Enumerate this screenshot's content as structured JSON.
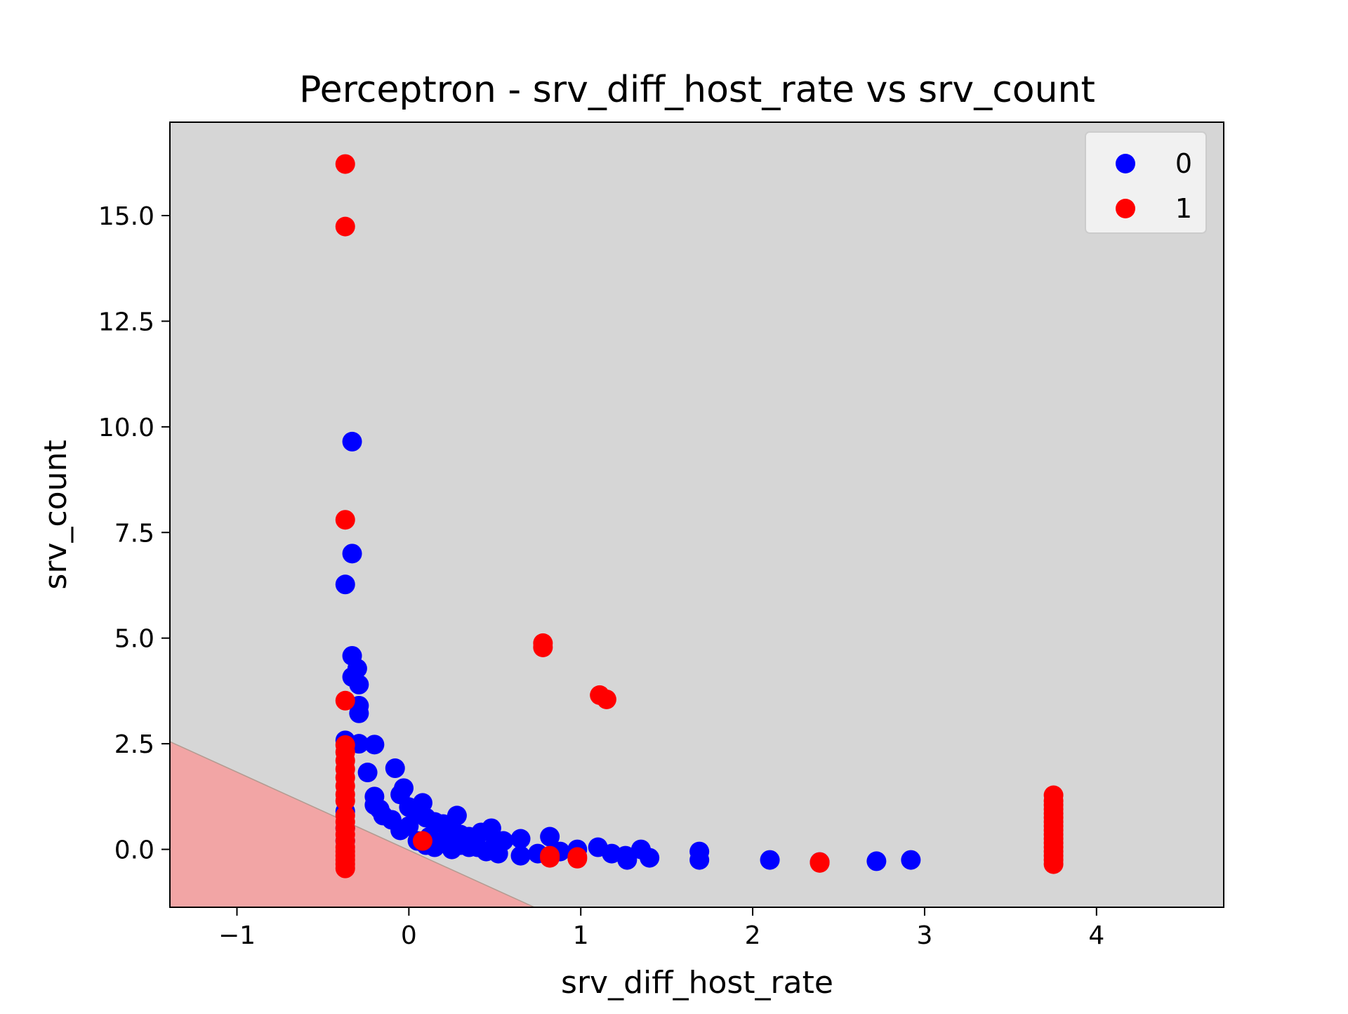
{
  "chart_data": {
    "type": "scatter",
    "title": "Perceptron - srv_diff_host_rate vs srv_count",
    "xlabel": "srv_diff_host_rate",
    "ylabel": "srv_count",
    "xlim": [
      -1.39,
      4.74
    ],
    "ylim": [
      -1.37,
      17.21
    ],
    "x_ticks": [
      -1,
      0,
      1,
      2,
      3,
      4
    ],
    "x_tick_labels": [
      "−1",
      "0",
      "1",
      "2",
      "3",
      "4"
    ],
    "y_ticks": [
      0.0,
      2.5,
      5.0,
      7.5,
      10.0,
      12.5,
      15.0
    ],
    "y_tick_labels": [
      "0.0",
      "2.5",
      "5.0",
      "7.5",
      "10.0",
      "12.5",
      "15.0"
    ],
    "grid": false,
    "legend_position": "top-right",
    "background_color": "#d6d6d6",
    "decision_region": {
      "color": "#f2a5a5",
      "boundary": [
        [
          -1.39,
          2.55
        ],
        [
          0.73,
          -1.37
        ]
      ]
    },
    "series": [
      {
        "name": "0",
        "color": "#0000ff",
        "points": [
          [
            -0.33,
            9.65
          ],
          [
            -0.33,
            7.0
          ],
          [
            -0.37,
            6.27
          ],
          [
            -0.33,
            4.58
          ],
          [
            -0.3,
            4.28
          ],
          [
            -0.33,
            4.08
          ],
          [
            -0.29,
            3.9
          ],
          [
            -0.29,
            3.4
          ],
          [
            -0.29,
            3.22
          ],
          [
            -0.37,
            2.58
          ],
          [
            -0.29,
            2.5
          ],
          [
            -0.2,
            2.48
          ],
          [
            -0.24,
            1.82
          ],
          [
            -0.08,
            1.92
          ],
          [
            -0.03,
            1.45
          ],
          [
            -0.2,
            1.25
          ],
          [
            -0.05,
            1.3
          ],
          [
            0.08,
            1.1
          ],
          [
            -0.2,
            1.05
          ],
          [
            -0.17,
            0.95
          ],
          [
            -0.15,
            0.8
          ],
          [
            -0.1,
            0.7
          ],
          [
            0.0,
            1.0
          ],
          [
            0.05,
            0.9
          ],
          [
            0.1,
            0.75
          ],
          [
            0.15,
            0.65
          ],
          [
            0.28,
            0.8
          ],
          [
            0.2,
            0.6
          ],
          [
            0.0,
            0.55
          ],
          [
            -0.05,
            0.45
          ],
          [
            0.25,
            0.5
          ],
          [
            0.3,
            0.35
          ],
          [
            0.35,
            0.3
          ],
          [
            0.42,
            0.4
          ],
          [
            0.48,
            0.5
          ],
          [
            0.2,
            0.2
          ],
          [
            0.12,
            0.3
          ],
          [
            0.3,
            0.1
          ],
          [
            0.4,
            0.05
          ],
          [
            0.5,
            0.1
          ],
          [
            0.55,
            0.2
          ],
          [
            0.45,
            -0.05
          ],
          [
            0.52,
            -0.1
          ],
          [
            0.35,
            0.05
          ],
          [
            0.25,
            0.0
          ],
          [
            0.15,
            0.05
          ],
          [
            0.1,
            0.1
          ],
          [
            0.05,
            0.2
          ],
          [
            0.65,
            0.25
          ],
          [
            0.65,
            -0.15
          ],
          [
            0.75,
            -0.1
          ],
          [
            0.82,
            0.3
          ],
          [
            0.88,
            -0.05
          ],
          [
            0.98,
            0.0
          ],
          [
            1.1,
            0.05
          ],
          [
            1.18,
            -0.1
          ],
          [
            1.26,
            -0.15
          ],
          [
            1.27,
            -0.25
          ],
          [
            1.35,
            0.0
          ],
          [
            1.4,
            -0.2
          ],
          [
            1.69,
            -0.05
          ],
          [
            1.69,
            -0.25
          ],
          [
            2.1,
            -0.25
          ],
          [
            2.39,
            -0.3
          ],
          [
            2.72,
            -0.28
          ],
          [
            2.92,
            -0.25
          ],
          [
            -0.37,
            0.9
          ],
          [
            -0.37,
            0.5
          ],
          [
            -0.37,
            0.2
          ]
        ]
      },
      {
        "name": "1",
        "color": "#ff0000",
        "points": [
          [
            -0.37,
            16.22
          ],
          [
            -0.37,
            14.74
          ],
          [
            -0.37,
            7.8
          ],
          [
            -0.37,
            3.52
          ],
          [
            0.78,
            4.88
          ],
          [
            0.78,
            4.78
          ],
          [
            1.11,
            3.65
          ],
          [
            1.15,
            3.55
          ],
          [
            0.08,
            0.2
          ],
          [
            0.82,
            -0.2
          ],
          [
            0.82,
            -0.15
          ],
          [
            0.98,
            -0.18
          ],
          [
            0.98,
            -0.22
          ],
          [
            2.39,
            -0.32
          ],
          [
            2.39,
            -0.3
          ],
          [
            -0.37,
            2.47
          ],
          [
            -0.37,
            2.3
          ],
          [
            -0.37,
            2.1
          ],
          [
            -0.37,
            1.9
          ],
          [
            -0.37,
            1.7
          ],
          [
            -0.37,
            1.5
          ],
          [
            -0.37,
            1.3
          ],
          [
            -0.37,
            1.15
          ],
          [
            -0.37,
            0.8
          ],
          [
            -0.37,
            0.65
          ],
          [
            -0.37,
            0.5
          ],
          [
            -0.37,
            0.35
          ],
          [
            -0.37,
            0.2
          ],
          [
            -0.37,
            0.05
          ],
          [
            -0.37,
            -0.05
          ],
          [
            -0.37,
            -0.15
          ],
          [
            -0.37,
            -0.25
          ],
          [
            -0.37,
            -0.35
          ],
          [
            -0.37,
            -0.45
          ],
          [
            3.75,
            1.28
          ],
          [
            3.75,
            1.15
          ],
          [
            3.75,
            1.05
          ],
          [
            3.75,
            0.95
          ],
          [
            3.75,
            0.85
          ],
          [
            3.75,
            0.75
          ],
          [
            3.75,
            0.65
          ],
          [
            3.75,
            0.55
          ],
          [
            3.75,
            0.45
          ],
          [
            3.75,
            0.35
          ],
          [
            3.75,
            0.25
          ],
          [
            3.75,
            0.15
          ],
          [
            3.75,
            0.05
          ],
          [
            3.75,
            -0.05
          ],
          [
            3.75,
            -0.15
          ],
          [
            3.75,
            -0.25
          ],
          [
            3.75,
            -0.35
          ]
        ]
      }
    ]
  }
}
